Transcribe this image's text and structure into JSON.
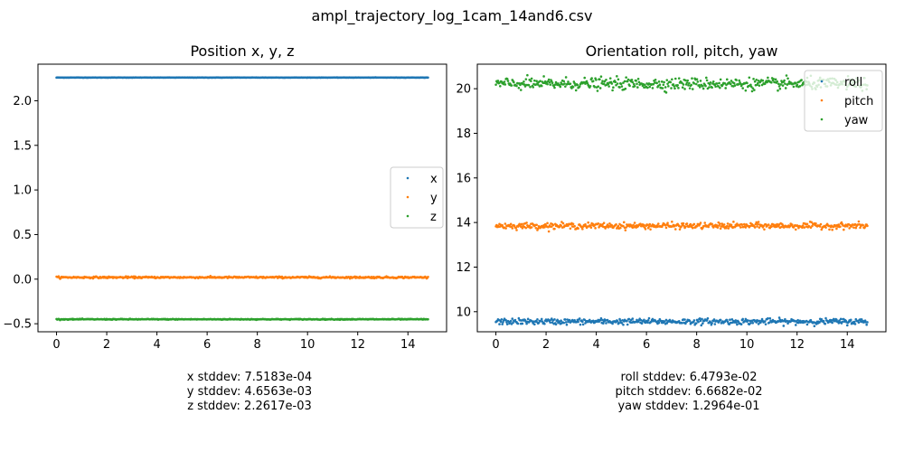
{
  "figure": {
    "title": "ampl_trajectory_log_1cam_14and6.csv"
  },
  "chart_data": [
    {
      "type": "scatter",
      "title": "Position x, y, z",
      "xlabel": "",
      "ylabel": "",
      "xlim": [
        -0.74,
        15.54
      ],
      "ylim": [
        -0.59,
        2.41
      ],
      "xticks": [
        0,
        2,
        4,
        6,
        8,
        10,
        12,
        14
      ],
      "yticks": [
        -0.5,
        0.0,
        0.5,
        1.0,
        1.5,
        2.0
      ],
      "ytick_labels": [
        "−0.5",
        "0.0",
        "0.5",
        "1.0",
        "1.5",
        "2.0"
      ],
      "x_range": [
        0,
        14.8
      ],
      "grid": false,
      "legend": {
        "placement": "center-right",
        "entries": [
          "x",
          "y",
          "z"
        ]
      },
      "series": [
        {
          "name": "x",
          "color": "#1f77b4",
          "mean": 2.26,
          "stddev": 0.00075
        },
        {
          "name": "y",
          "color": "#ff7f0e",
          "mean": 0.02,
          "stddev": 0.0047
        },
        {
          "name": "z",
          "color": "#2ca02c",
          "mean": -0.45,
          "stddev": 0.0023
        }
      ],
      "stats": [
        "x stddev: 7.5183e-04",
        "y stddev: 4.6563e-03",
        "z stddev: 2.2617e-03"
      ]
    },
    {
      "type": "scatter",
      "title": "Orientation roll, pitch, yaw",
      "xlabel": "",
      "ylabel": "",
      "xlim": [
        -0.74,
        15.54
      ],
      "ylim": [
        9.1,
        21.1
      ],
      "xticks": [
        0,
        2,
        4,
        6,
        8,
        10,
        12,
        14
      ],
      "yticks": [
        10,
        12,
        14,
        16,
        18,
        20
      ],
      "ytick_labels": [
        "10",
        "12",
        "14",
        "16",
        "18",
        "20"
      ],
      "x_range": [
        0,
        14.8
      ],
      "grid": false,
      "legend": {
        "placement": "top-right",
        "entries": [
          "roll",
          "pitch",
          "yaw"
        ]
      },
      "series": [
        {
          "name": "roll",
          "color": "#1f77b4",
          "mean": 9.56,
          "stddev": 0.065
        },
        {
          "name": "pitch",
          "color": "#ff7f0e",
          "mean": 13.85,
          "stddev": 0.067
        },
        {
          "name": "yaw",
          "color": "#2ca02c",
          "mean": 20.22,
          "stddev": 0.13
        }
      ],
      "stats": [
        "roll stddev: 6.4793e-02",
        "pitch stddev: 6.6682e-02",
        "yaw stddev: 1.2964e-01"
      ]
    }
  ]
}
